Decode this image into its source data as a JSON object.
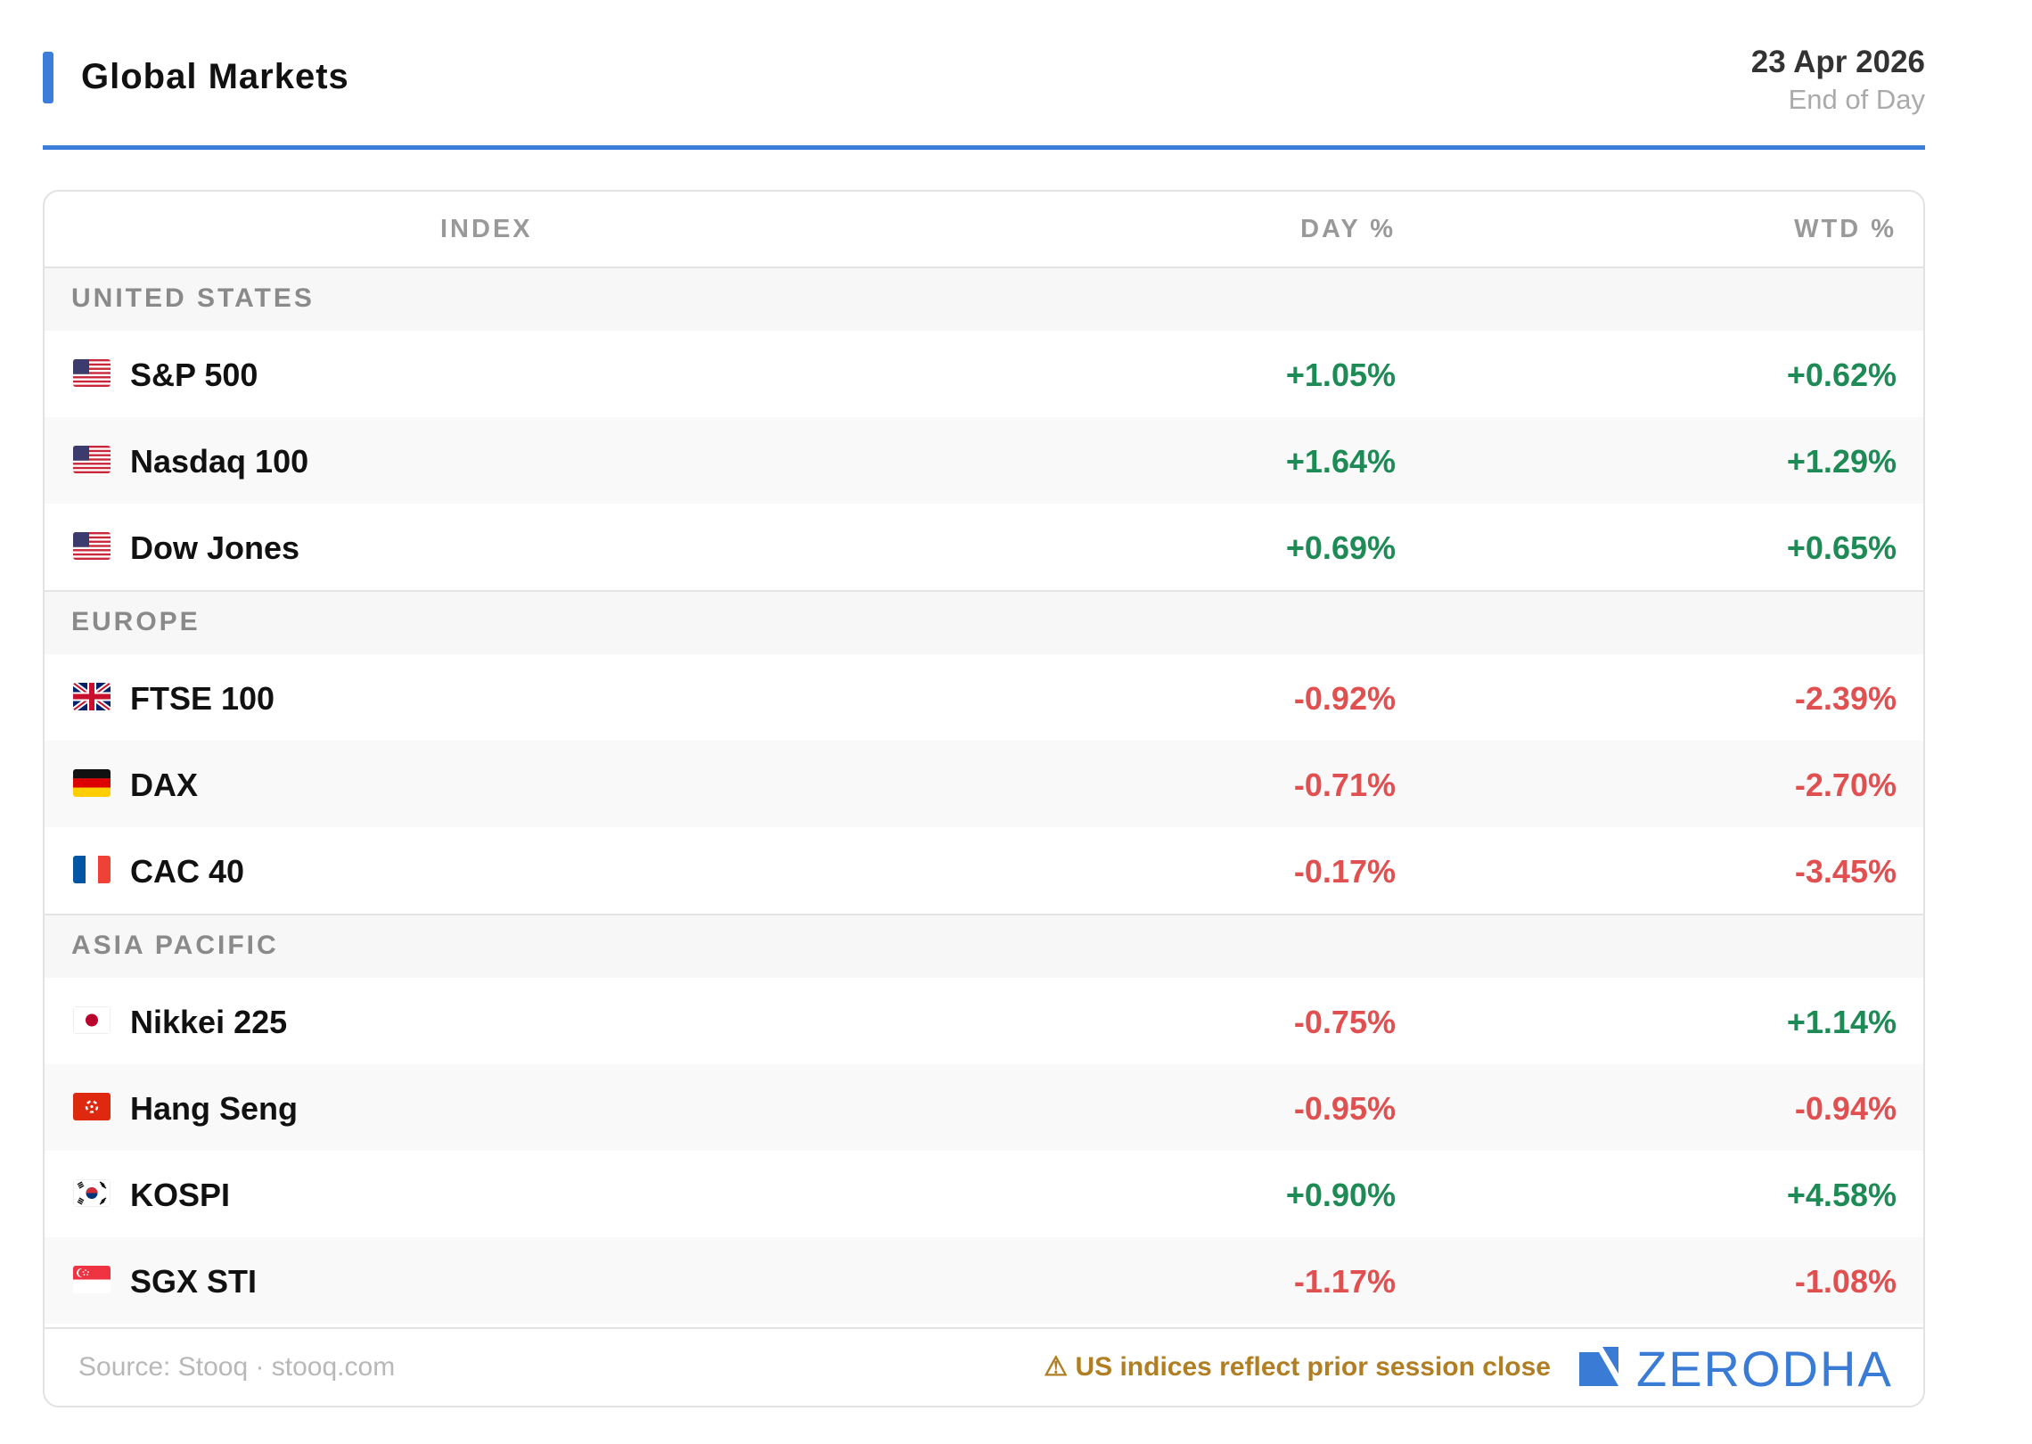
{
  "header": {
    "title": "Global Markets",
    "date": "23 Apr 2026",
    "subtitle": "End of Day",
    "accent_color": "#3b7dd8"
  },
  "table": {
    "columns": {
      "index": "INDEX",
      "day": "DAY %",
      "wtd": "WTD %"
    },
    "sections": [
      {
        "label": "UNITED STATES",
        "rows": [
          {
            "flag": "us-flag-icon",
            "name": "S&P 500",
            "day": "+1.05%",
            "wtd": "+0.62%"
          },
          {
            "flag": "us-flag-icon",
            "name": "Nasdaq 100",
            "day": "+1.64%",
            "wtd": "+1.29%"
          },
          {
            "flag": "us-flag-icon",
            "name": "Dow Jones",
            "day": "+0.69%",
            "wtd": "+0.65%"
          }
        ]
      },
      {
        "label": "EUROPE",
        "rows": [
          {
            "flag": "uk-flag-icon",
            "name": "FTSE 100",
            "day": "-0.92%",
            "wtd": "-2.39%"
          },
          {
            "flag": "de-flag-icon",
            "name": "DAX",
            "day": "-0.71%",
            "wtd": "-2.70%"
          },
          {
            "flag": "fr-flag-icon",
            "name": "CAC 40",
            "day": "-0.17%",
            "wtd": "-3.45%"
          }
        ]
      },
      {
        "label": "ASIA PACIFIC",
        "rows": [
          {
            "flag": "jp-flag-icon",
            "name": "Nikkei 225",
            "day": "-0.75%",
            "wtd": "+1.14%"
          },
          {
            "flag": "hk-flag-icon",
            "name": "Hang Seng",
            "day": "-0.95%",
            "wtd": "-0.94%"
          },
          {
            "flag": "kr-flag-icon",
            "name": "KOSPI",
            "day": "+0.90%",
            "wtd": "+4.58%"
          },
          {
            "flag": "sg-flag-icon",
            "name": "SGX STI",
            "day": "-1.17%",
            "wtd": "-1.08%"
          }
        ]
      }
    ],
    "colors": {
      "positive": "#1e8a55",
      "negative": "#e05050"
    }
  },
  "footer": {
    "source": "Source: Stooq · stooq.com",
    "warning": "⚠ US indices reflect prior session close",
    "logo_text": "ZERODHA",
    "logo_color": "#3a7bd5"
  }
}
